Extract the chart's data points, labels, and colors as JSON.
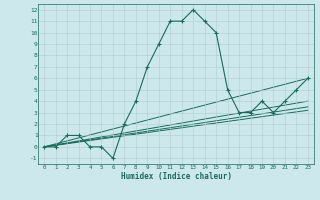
{
  "xlabel": "Humidex (Indice chaleur)",
  "background_color": "#cce8ed",
  "line_color": "#1a6b5a",
  "grid_color": "#b0cccc",
  "xlim": [
    -0.5,
    23.5
  ],
  "ylim": [
    -1.5,
    12.5
  ],
  "xticks": [
    0,
    1,
    2,
    3,
    4,
    5,
    6,
    7,
    8,
    9,
    10,
    11,
    12,
    13,
    14,
    15,
    16,
    17,
    18,
    19,
    20,
    21,
    22,
    23
  ],
  "yticks": [
    -1,
    0,
    1,
    2,
    3,
    4,
    5,
    6,
    7,
    8,
    9,
    10,
    11,
    12
  ],
  "main_x": [
    0,
    1,
    2,
    3,
    4,
    5,
    6,
    7,
    8,
    9,
    10,
    11,
    12,
    13,
    14,
    15,
    16,
    17,
    18,
    19,
    20,
    21,
    22,
    23
  ],
  "main_y": [
    0,
    0,
    1,
    1,
    0,
    0,
    -1,
    2,
    4,
    7,
    9,
    11,
    11,
    12,
    11,
    10,
    5,
    3,
    3,
    4,
    3,
    4,
    5,
    6
  ],
  "lines": [
    {
      "x": [
        0,
        23
      ],
      "y": [
        0,
        6.0
      ]
    },
    {
      "x": [
        0,
        23
      ],
      "y": [
        0,
        4.0
      ]
    },
    {
      "x": [
        0,
        23
      ],
      "y": [
        0,
        3.5
      ]
    },
    {
      "x": [
        0,
        23
      ],
      "y": [
        0,
        3.2
      ]
    }
  ]
}
